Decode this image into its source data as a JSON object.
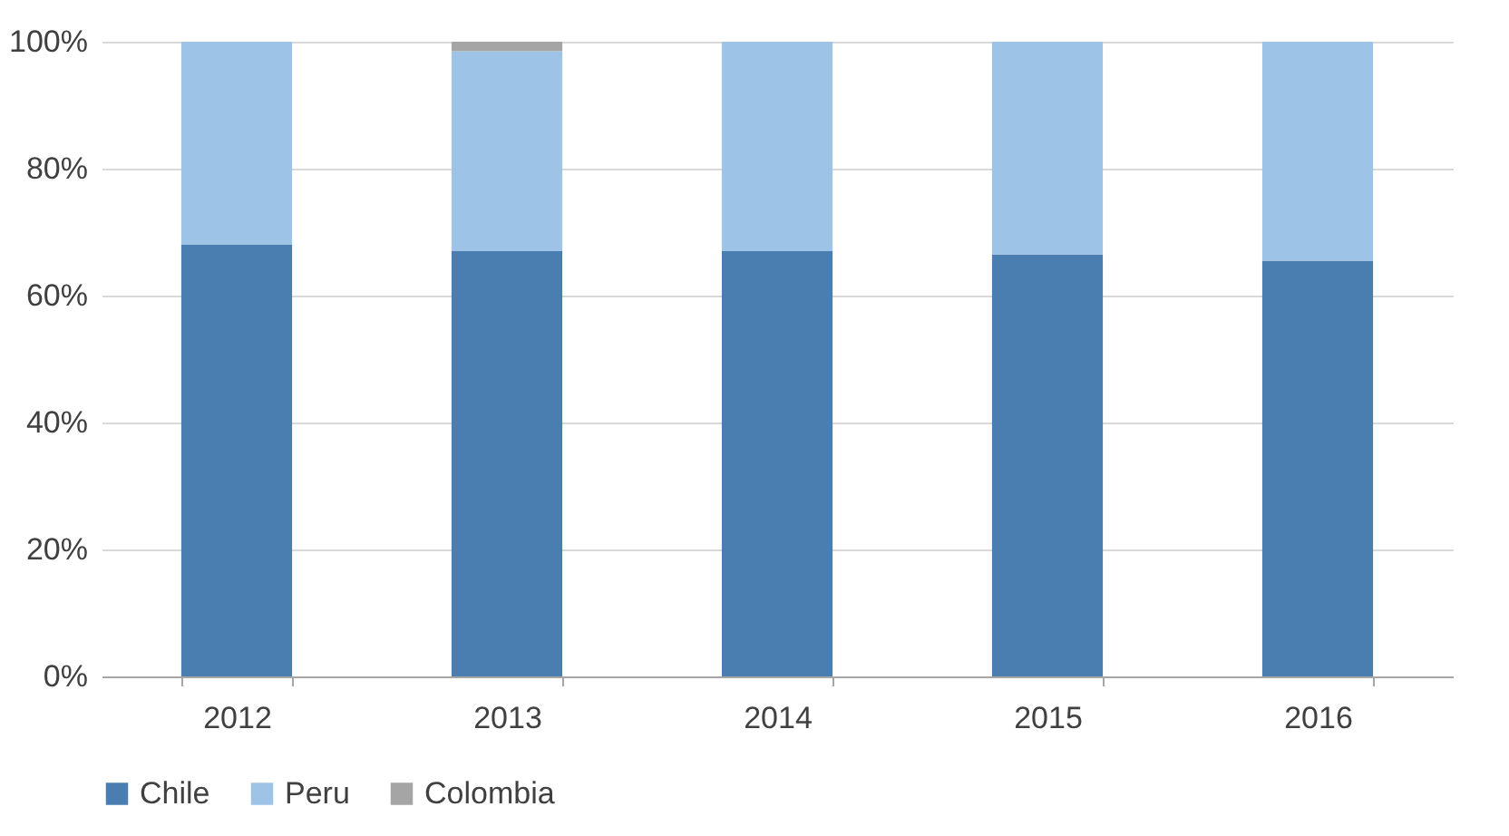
{
  "chart_data": {
    "type": "bar",
    "stacked": true,
    "categories": [
      "2012",
      "2013",
      "2014",
      "2015",
      "2016"
    ],
    "series": [
      {
        "name": "Chile",
        "color": "#4a7eb0",
        "values": [
          68,
          67,
          67,
          66.5,
          65.5
        ]
      },
      {
        "name": "Peru",
        "color": "#9dc3e6",
        "values": [
          32,
          31.5,
          33,
          33.5,
          34.5
        ]
      },
      {
        "name": "Colombia",
        "color": "#a5a5a5",
        "values": [
          0,
          1.5,
          0,
          0,
          0
        ]
      }
    ],
    "ylim": [
      0,
      100
    ],
    "yticks": [
      {
        "value": 0,
        "label": "0%"
      },
      {
        "value": 20,
        "label": "20%"
      },
      {
        "value": 40,
        "label": "40%"
      },
      {
        "value": 60,
        "label": "60%"
      },
      {
        "value": 80,
        "label": "80%"
      },
      {
        "value": 100,
        "label": "100%"
      }
    ],
    "grid": "y",
    "legend": "bottom"
  }
}
